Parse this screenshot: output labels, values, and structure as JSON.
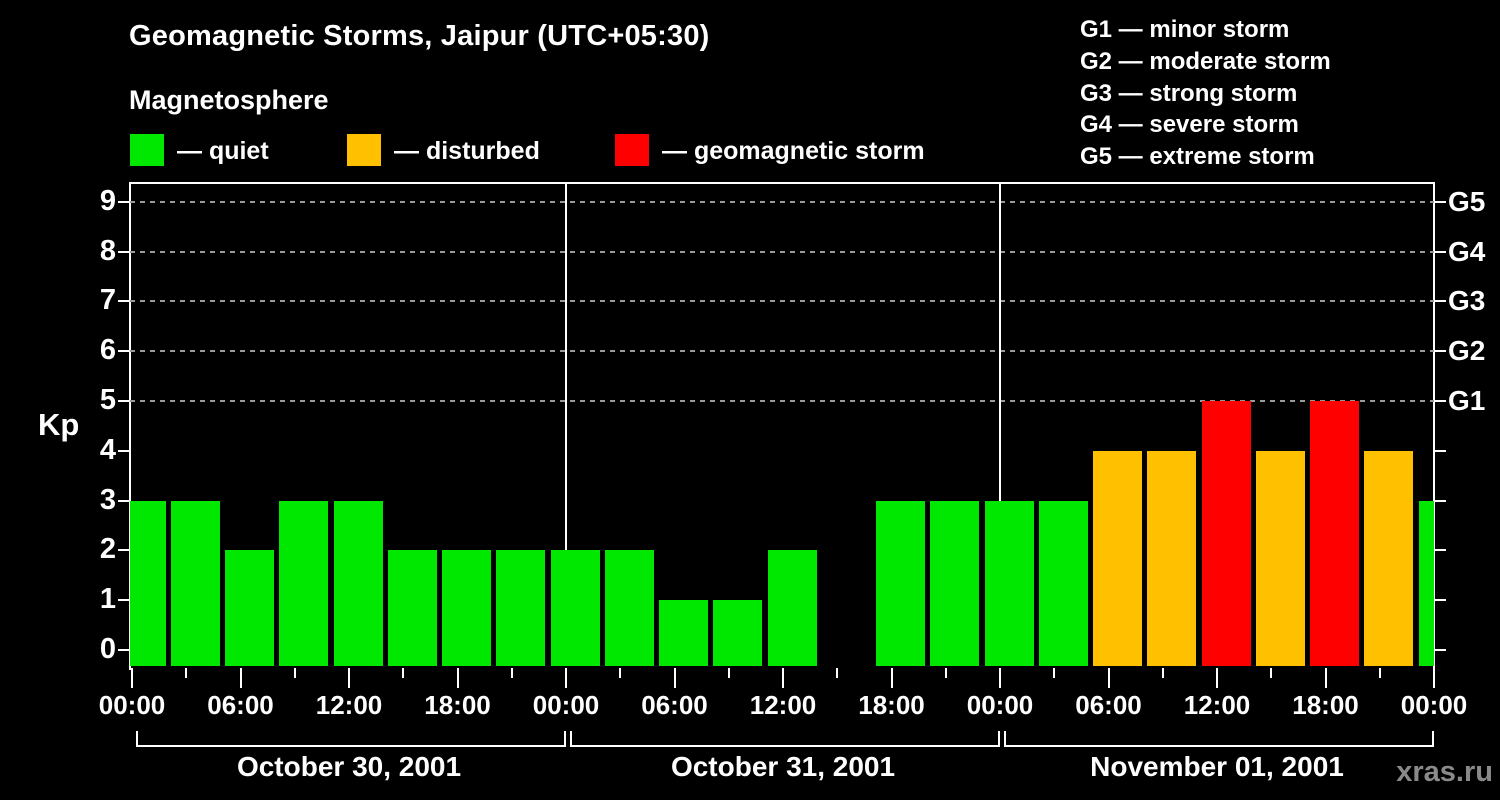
{
  "header": {
    "title": "Geomagnetic Storms, Jaipur (UTC+05:30)",
    "subtitle": "Magnetosphere"
  },
  "condition_legend": [
    {
      "name": "quiet",
      "label": "— quiet",
      "color": "#00e800"
    },
    {
      "name": "disturbed",
      "label": "— disturbed",
      "color": "#ffc000"
    },
    {
      "name": "storm",
      "label": "— geomagnetic storm",
      "color": "#ff0000"
    }
  ],
  "storm_scale_legend": [
    "G1 — minor storm",
    "G2 — moderate storm",
    "G3 — strong storm",
    "G4 — severe storm",
    "G5 — extreme storm"
  ],
  "watermark": "xras.ru",
  "chart_data": {
    "type": "bar",
    "title": "Geomagnetic Storms, Jaipur (UTC+05:30)",
    "xlabel": "",
    "ylabel": "Kp",
    "ylim": [
      0,
      9
    ],
    "yticks": [
      0,
      1,
      2,
      3,
      4,
      5,
      6,
      7,
      8,
      9
    ],
    "grid_levels_dashed": [
      5,
      6,
      7,
      8,
      9
    ],
    "right_axis": [
      {
        "label": "G1",
        "kp": 5
      },
      {
        "label": "G2",
        "kp": 6
      },
      {
        "label": "G3",
        "kp": 7
      },
      {
        "label": "G4",
        "kp": 8
      },
      {
        "label": "G5",
        "kp": 9
      }
    ],
    "interval_hours": 3,
    "x_major_labels": [
      "00:00",
      "06:00",
      "12:00",
      "18:00"
    ],
    "days": [
      {
        "date": "October 30, 2001",
        "values": [
          3,
          3,
          2,
          3,
          3,
          2,
          2,
          2
        ]
      },
      {
        "date": "October 31, 2001",
        "values": [
          2,
          2,
          1,
          1,
          2,
          0,
          3,
          3
        ]
      },
      {
        "date": "November 01, 2001",
        "values": [
          3,
          3,
          4,
          4,
          5,
          4,
          5,
          4
        ]
      }
    ],
    "next_day_first_value": 3,
    "color_thresholds": {
      "quiet_max_kp": 3,
      "disturbed_kp": 4,
      "storm_min_kp": 5
    },
    "legend_position": "top-left",
    "grid": "dashed horizontal lines at Kp 5-9 (G1-G5)"
  }
}
